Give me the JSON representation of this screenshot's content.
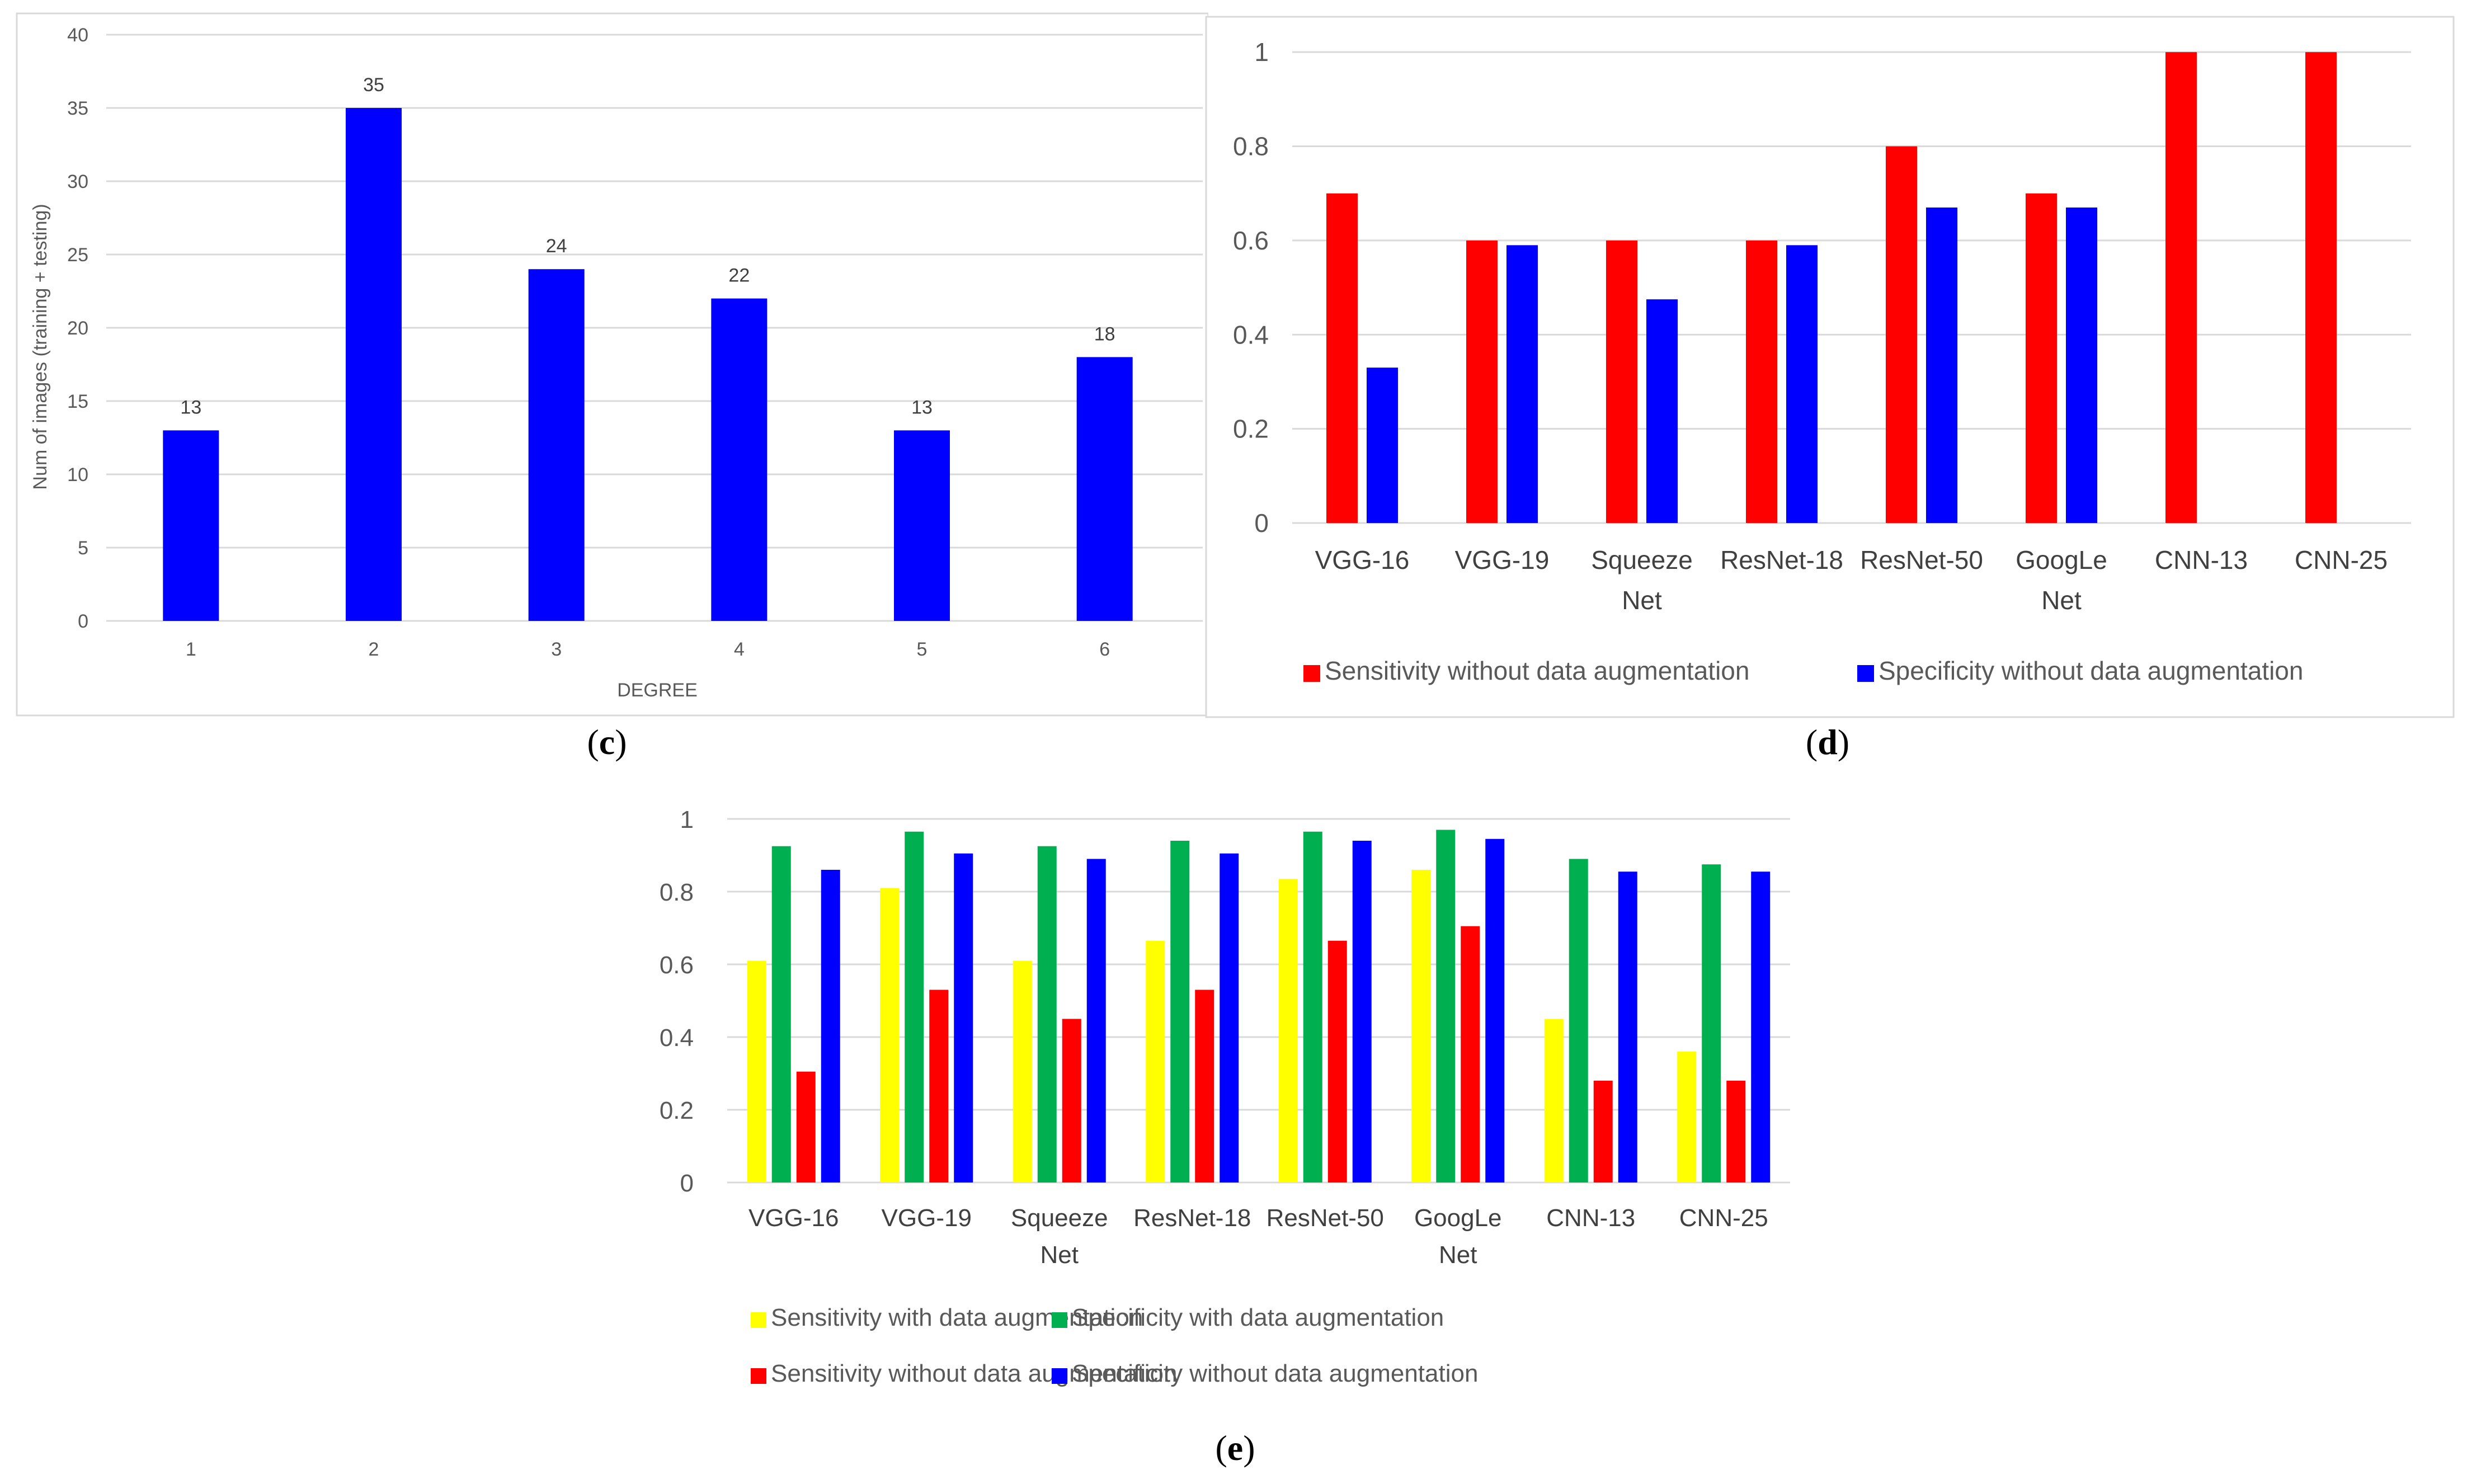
{
  "charts": {
    "c": {
      "caption_open": "(",
      "caption_letter": "c",
      "caption_close": ")"
    },
    "d": {
      "caption_open": "(",
      "caption_letter": "d",
      "caption_close": ")"
    },
    "e": {
      "caption_open": "(",
      "caption_letter": "e",
      "caption_close": ")"
    }
  },
  "colors": {
    "red": "#FF0000",
    "blue": "#0000FF",
    "yellow": "#FFFF00",
    "green": "#00B050",
    "grid": "#D9D9D9",
    "axis_text": "#595959"
  },
  "chart_data": [
    {
      "id": "c",
      "type": "bar",
      "categories": [
        "1",
        "2",
        "3",
        "4",
        "5",
        "6"
      ],
      "series": [
        {
          "values": [
            13,
            35,
            24,
            22,
            13,
            18
          ],
          "color": "#0000FF"
        }
      ],
      "data_labels": [
        "13",
        "35",
        "24",
        "22",
        "13",
        "18"
      ],
      "xlabel": "DEGREE",
      "ylabel": "Num of images (training + testing)",
      "ylim": [
        0,
        40
      ],
      "yticks": [
        "0",
        "5",
        "10",
        "15",
        "20",
        "25",
        "30",
        "35",
        "40"
      ],
      "grid": true,
      "legend": "none"
    },
    {
      "id": "d",
      "type": "bar",
      "categories": [
        [
          "VGG-16"
        ],
        [
          "VGG-19"
        ],
        [
          "Squeeze",
          "Net"
        ],
        [
          "ResNet-18"
        ],
        [
          "ResNet-50"
        ],
        [
          "GoogLe",
          "Net"
        ],
        [
          "CNN-13"
        ],
        [
          "CNN-25"
        ]
      ],
      "series": [
        {
          "name": "Sensitivity without data augmentation",
          "values": [
            0.7,
            0.6,
            0.6,
            0.6,
            0.8,
            0.7,
            1.0,
            1.0
          ],
          "color": "#FF0000"
        },
        {
          "name": "Specificity without data augmentation",
          "values": [
            0.33,
            0.59,
            0.475,
            0.59,
            0.67,
            0.67,
            null,
            null
          ],
          "color": "#0000FF"
        }
      ],
      "ylim": [
        0,
        1.1
      ],
      "yticks": [
        "0",
        "0.2",
        "0.4",
        "0.6",
        "0.8",
        "1"
      ],
      "grid": true,
      "legend": "bottom"
    },
    {
      "id": "e",
      "type": "bar",
      "categories": [
        [
          "VGG-16"
        ],
        [
          "VGG-19"
        ],
        [
          "Squeeze",
          "Net"
        ],
        [
          "ResNet-18"
        ],
        [
          "ResNet-50"
        ],
        [
          "GoogLe",
          "Net"
        ],
        [
          "CNN-13"
        ],
        [
          "CNN-25"
        ]
      ],
      "series": [
        {
          "name": "Sensitivity with data augmentation",
          "values": [
            0.61,
            0.81,
            0.61,
            0.665,
            0.835,
            0.86,
            0.45,
            0.36
          ],
          "color": "#FFFF00"
        },
        {
          "name": "Specificity with data augmentation",
          "values": [
            0.925,
            0.965,
            0.925,
            0.94,
            0.965,
            0.97,
            0.89,
            0.875
          ],
          "color": "#00B050"
        },
        {
          "name": "Sensitivity without data augmentation",
          "values": [
            0.305,
            0.53,
            0.45,
            0.53,
            0.665,
            0.705,
            0.28,
            0.28
          ],
          "color": "#FF0000"
        },
        {
          "name": "Specificity without data augmentation",
          "values": [
            0.86,
            0.905,
            0.89,
            0.905,
            0.94,
            0.945,
            0.855,
            0.855
          ],
          "color": "#0000FF"
        }
      ],
      "ylim": [
        0,
        1
      ],
      "yticks": [
        "0",
        "0.2",
        "0.4",
        "0.6",
        "0.8",
        "1"
      ],
      "grid": true,
      "legend": "bottom"
    }
  ]
}
